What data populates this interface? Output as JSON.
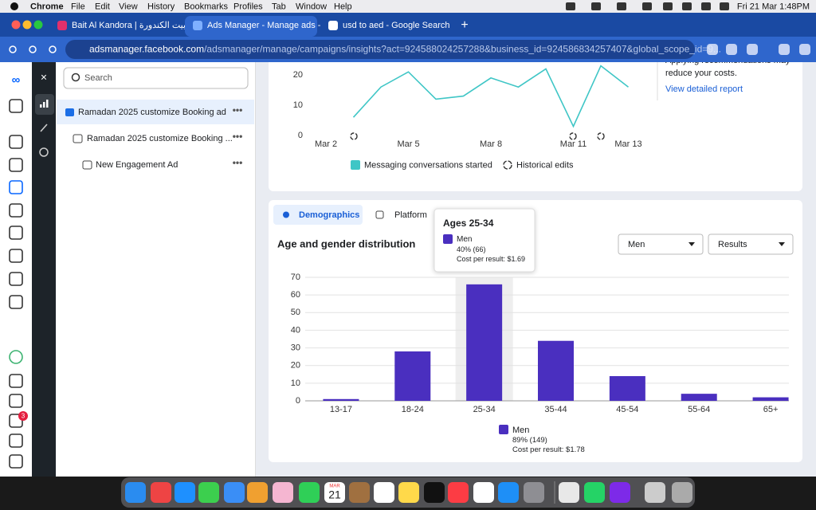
{
  "menubar": {
    "app": "Chrome",
    "items": [
      "File",
      "Edit",
      "View",
      "History",
      "Bookmarks",
      "Profiles",
      "Tab",
      "Window",
      "Help"
    ],
    "clock": "Fri 21 Mar  1:48PM"
  },
  "tabs": [
    {
      "title": "Bait Al Kandora | بيت الكندورة (..."
    },
    {
      "title": "Ads Manager - Manage ads -"
    },
    {
      "title": "usd to aed - Google Search"
    }
  ],
  "address": {
    "host": "adsmanager.facebook.com",
    "path": "/adsmanager/manage/campaigns/insights?act=924588024257288&business_id=924586834257407&global_scope_id=9..."
  },
  "sidebar": {
    "search_placeholder": "Search",
    "notifications": 3
  },
  "tree": [
    "Ramadan 2025 customize Booking ad",
    "Ramadan 2025 customize Booking ...",
    "New Engagement Ad"
  ],
  "recommendation": {
    "text_cut": "Applying recommendations may",
    "text": "reduce your costs.",
    "link": "View detailed report"
  },
  "trend_chart": {
    "type": "line",
    "categories": [
      "Mar 2",
      null,
      null,
      "Mar 5",
      null,
      null,
      "Mar 8",
      null,
      null,
      "Mar 11",
      null,
      "Mar 13"
    ],
    "series": [
      {
        "name": "Messaging conversations started",
        "color": "#3fc6c6",
        "values": [
          null,
          6,
          16,
          21,
          12,
          13,
          19,
          16,
          22,
          3,
          23,
          16
        ]
      }
    ],
    "ylim": [
      0,
      30
    ],
    "yticks": [
      0,
      10,
      20
    ],
    "edits_legend": "Historical edits"
  },
  "demographics": {
    "tabs": [
      "Demographics",
      "Platform"
    ],
    "title": "Age and gender distribution",
    "dropdowns": [
      "Men",
      "Results"
    ],
    "tooltip": {
      "title": "Ages 25-34",
      "series": "Men",
      "value": "40% (66)",
      "cost": "Cost per result: $1.69"
    },
    "summary": {
      "series": "Men",
      "value": "89% (149)",
      "cost": "Cost per result: $1.78"
    }
  },
  "chart_data": {
    "type": "bar",
    "categories": [
      "13-17",
      "18-24",
      "25-34",
      "35-44",
      "45-54",
      "55-64",
      "65+"
    ],
    "series": [
      {
        "name": "Men",
        "color": "#4a2fbf",
        "values": [
          1,
          28,
          66,
          34,
          14,
          4,
          2
        ]
      }
    ],
    "ylim": [
      0,
      70
    ],
    "yticks": [
      0,
      10,
      20,
      30,
      40,
      50,
      60,
      70
    ],
    "grid": true
  },
  "dock": {
    "calendar_month": "MAR",
    "calendar_day": "21"
  }
}
